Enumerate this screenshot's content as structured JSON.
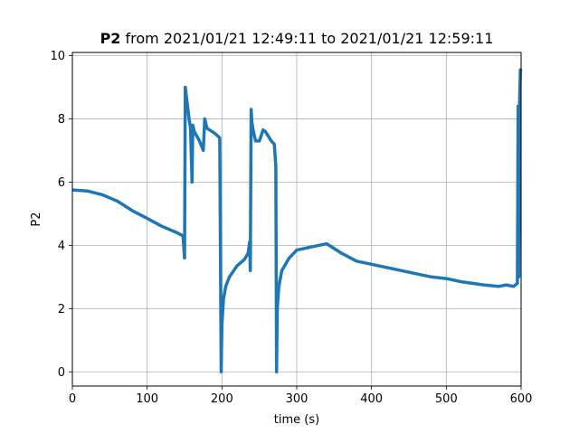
{
  "chart_data": {
    "type": "line",
    "title": {
      "bold": "P2",
      "rest": " from 2021/01/21 12:49:11 to 2021/01/21 12:59:11"
    },
    "xlabel": "time (s)",
    "ylabel": "P2",
    "xlim": [
      0,
      600
    ],
    "ylim": [
      -0.45,
      10.1
    ],
    "xticks": [
      0,
      100,
      200,
      300,
      400,
      500,
      600
    ],
    "yticks": [
      0,
      2,
      4,
      6,
      8,
      10
    ],
    "grid": true,
    "line_color": "#1f77b4",
    "series": [
      {
        "x": [
          0,
          20,
          40,
          60,
          80,
          100,
          120,
          140,
          148,
          150,
          151,
          153,
          156,
          158,
          160,
          161,
          163,
          170,
          175,
          177,
          180,
          190,
          197,
          199,
          200,
          202,
          205,
          210,
          220,
          230,
          235,
          237,
          238,
          239,
          240,
          242,
          245,
          250,
          255,
          258,
          262,
          266,
          270,
          272,
          273,
          274,
          276,
          280,
          290,
          300,
          320,
          340,
          360,
          380,
          400,
          420,
          450,
          480,
          500,
          520,
          550,
          570,
          580,
          590,
          595,
          596,
          597,
          598,
          599,
          600
        ],
        "y": [
          5.75,
          5.72,
          5.6,
          5.4,
          5.1,
          4.85,
          4.6,
          4.4,
          4.3,
          3.6,
          9.0,
          8.6,
          8.0,
          7.7,
          6.0,
          7.8,
          7.6,
          7.3,
          7.0,
          8.0,
          7.7,
          7.55,
          7.4,
          0.0,
          1.5,
          2.3,
          2.7,
          3.0,
          3.35,
          3.55,
          3.75,
          4.1,
          3.2,
          8.3,
          7.9,
          7.6,
          7.3,
          7.3,
          7.65,
          7.6,
          7.45,
          7.3,
          7.2,
          6.5,
          0.0,
          2.0,
          2.7,
          3.2,
          3.6,
          3.85,
          3.95,
          4.05,
          3.75,
          3.5,
          3.4,
          3.3,
          3.15,
          3.0,
          2.95,
          2.85,
          2.75,
          2.7,
          2.75,
          2.7,
          2.8,
          8.4,
          3.0,
          8.5,
          9.55,
          9.5
        ]
      }
    ]
  }
}
